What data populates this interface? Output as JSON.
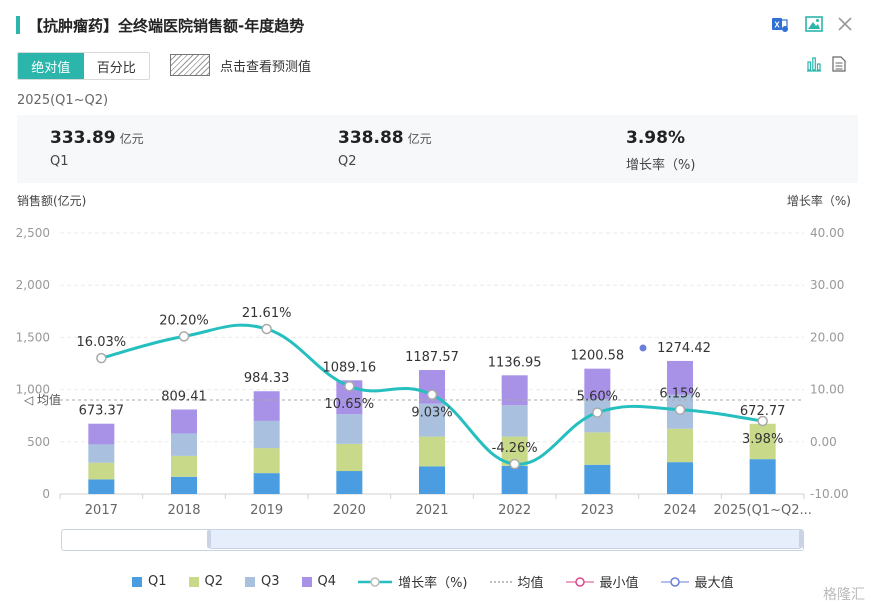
{
  "header": {
    "title": "【抗肿瘤药】全终端医院销售额-年度趋势",
    "icons": [
      "excel-export-icon",
      "image-export-icon",
      "close-icon"
    ]
  },
  "toolbar": {
    "tab_absolute": "绝对值",
    "tab_percent": "百分比",
    "forecast_label": "点击查看预测值",
    "view_icons": [
      "bar-chart-icon",
      "table-icon"
    ]
  },
  "period": "2025(Q1~Q2)",
  "summary": [
    {
      "value": "333.89",
      "unit": "亿元",
      "label": "Q1"
    },
    {
      "value": "338.88",
      "unit": "亿元",
      "label": "Q2"
    },
    {
      "value": "3.98%",
      "unit": "",
      "label": "增长率（%)"
    }
  ],
  "colors": {
    "accent": "#2bb5ab",
    "q1": "#4a9de0",
    "q2": "#c8d98a",
    "q3": "#a9c1de",
    "q4": "#a792e8",
    "growth_line": "#26bfbf",
    "max_marker": "#6b7fd9"
  },
  "chart_data": {
    "type": "bar",
    "stacked": true,
    "categories": [
      "2017",
      "2018",
      "2019",
      "2020",
      "2021",
      "2022",
      "2023",
      "2024",
      "2025(Q1~Q2..."
    ],
    "series": [
      {
        "name": "Q1",
        "values": [
          140,
          165,
          200,
          220,
          265,
          270,
          280,
          305,
          333.89
        ]
      },
      {
        "name": "Q2",
        "values": [
          160,
          200,
          240,
          260,
          285,
          280,
          310,
          320,
          338.88
        ]
      },
      {
        "name": "Q3",
        "values": [
          175,
          215,
          260,
          285,
          315,
          300,
          320,
          325,
          0
        ]
      },
      {
        "name": "Q4",
        "values": [
          198.37,
          229.41,
          284.33,
          324.16,
          322.57,
          286.95,
          290.58,
          324.42,
          0
        ]
      }
    ],
    "totals": [
      673.37,
      809.41,
      984.33,
      1089.16,
      1187.57,
      1136.95,
      1200.58,
      1274.42,
      672.77
    ],
    "total_labels": [
      "673.37",
      "809.41",
      "984.33",
      "1089.16",
      "1187.57",
      "1136.95",
      "1200.58",
      "1274.42",
      "672.77"
    ],
    "growth": {
      "name": "增长率（%)",
      "values": [
        16.03,
        20.2,
        21.61,
        10.65,
        9.03,
        -4.26,
        5.6,
        6.15,
        3.98
      ],
      "labels": [
        "16.03%",
        "20.20%",
        "21.61%",
        "10.65%",
        "9.03%",
        "-4.26%",
        "5.60%",
        "6.15%",
        "3.98%"
      ]
    },
    "mean_label": "均值",
    "mean_value": 900,
    "ylabel": "销售额(亿元)",
    "y2label": "增长率（%)",
    "ylim": [
      0,
      2500
    ],
    "y2lim": [
      -10,
      40
    ],
    "y_ticks": [
      "0",
      "500",
      "1,000",
      "1,500",
      "2,000",
      "2,500"
    ],
    "y2_ticks": [
      "-10.00",
      "0.00",
      "10.00",
      "20.00",
      "30.00",
      "40.00"
    ],
    "legend": [
      "Q1",
      "Q2",
      "Q3",
      "Q4",
      "增长率（%)",
      "均值",
      "最小值",
      "最大值"
    ],
    "legend_position": "bottom",
    "grid": true
  },
  "watermark": "格隆汇"
}
